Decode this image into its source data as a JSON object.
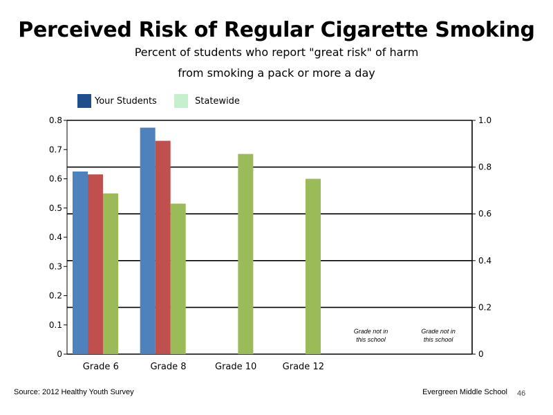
{
  "slide": {
    "title": "Perceived Risk of Regular Cigarette Smoking",
    "subtitle_line1": "Percent of students who report \"great risk\" of harm",
    "subtitle_line2": "from smoking a pack or more a day",
    "source": "Source: 2012 Healthy Youth Survey",
    "school": "Evergreen Middle  School",
    "page_number": "46"
  },
  "legend": {
    "your_students": {
      "label": "Your Students",
      "color": "#1f4e8c"
    },
    "statewide": {
      "label": "Statewide",
      "color": "#c6efce"
    }
  },
  "chart_data": {
    "type": "bar",
    "categories": [
      "Grade 6",
      "Grade 8",
      "Grade 10",
      "Grade 12",
      "",
      ""
    ],
    "series": [
      {
        "color": "#4f81bd",
        "values": [
          0.625,
          0.775,
          null,
          null,
          null,
          null
        ]
      },
      {
        "color": "#c0504d",
        "values": [
          0.615,
          0.73,
          null,
          null,
          null,
          null
        ]
      },
      {
        "color": "#9bbb59",
        "values": [
          0.55,
          0.515,
          0.685,
          0.6,
          null,
          null
        ]
      }
    ],
    "ylim": [
      0,
      0.8
    ],
    "yticks": [
      "0",
      "0.1",
      "0.2",
      "0.3",
      "0.4",
      "0.5",
      "0.6",
      "0.7",
      "0.8"
    ],
    "y2lim": [
      0,
      1.0
    ],
    "y2ticks": [
      "0",
      "0.2",
      "0.4",
      "0.6",
      "0.8",
      "1.0"
    ],
    "annotations": [
      {
        "category_index": 4,
        "line1": "Grade not in",
        "line2": "this school"
      },
      {
        "category_index": 5,
        "line1": "Grade not in",
        "line2": "this school"
      }
    ],
    "grid": true
  }
}
